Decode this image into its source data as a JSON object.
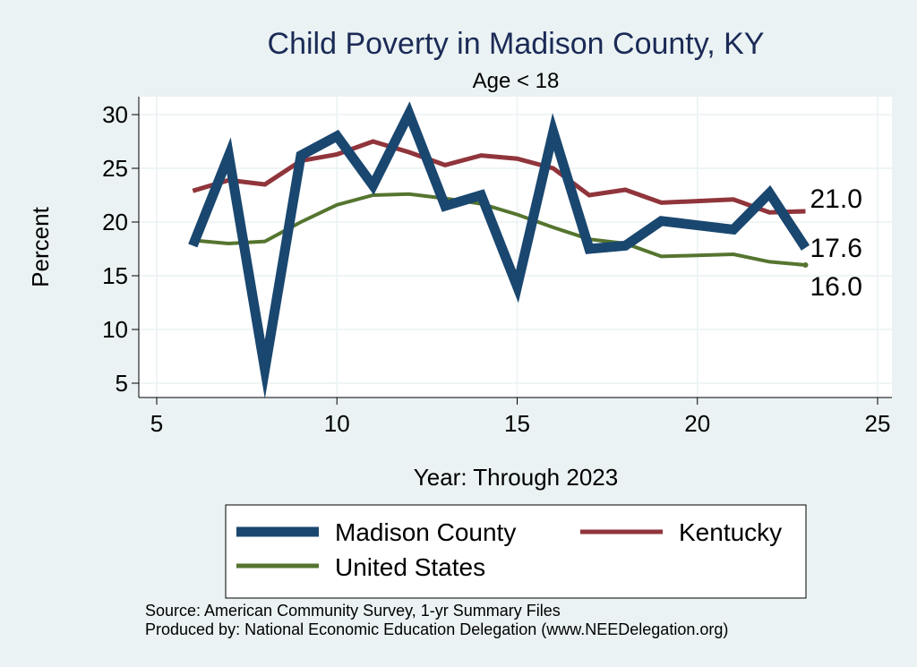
{
  "chart_data": {
    "type": "line",
    "title": "Child Poverty in Madison County, KY",
    "subtitle": "Age < 18",
    "xlabel": "Year: Through 2023",
    "ylabel": "Percent",
    "xlim": [
      5,
      25
    ],
    "ylim": [
      3.5,
      31.5
    ],
    "xticks": [
      5,
      10,
      15,
      20,
      25
    ],
    "yticks": [
      5,
      10,
      15,
      20,
      25,
      30
    ],
    "grid": true,
    "legend_position": "bottom",
    "series": [
      {
        "name": "Madison County",
        "color": "#1a476f",
        "x": [
          6,
          7,
          8,
          9,
          10,
          11,
          12,
          13,
          14,
          15,
          16,
          17,
          18,
          19,
          21,
          22,
          23
        ],
        "values": [
          17.8,
          26.2,
          6.3,
          26.2,
          28.0,
          23.4,
          30.1,
          21.5,
          22.5,
          14.0,
          28.4,
          17.5,
          17.8,
          20.1,
          19.3,
          22.7,
          17.6
        ],
        "end_label": "17.6"
      },
      {
        "name": "Kentucky",
        "color": "#90353b",
        "x": [
          6,
          7,
          8,
          9,
          10,
          11,
          12,
          13,
          14,
          15,
          16,
          17,
          18,
          19,
          21,
          22,
          23
        ],
        "values": [
          22.9,
          23.9,
          23.5,
          25.7,
          26.3,
          27.5,
          26.5,
          25.3,
          26.2,
          25.9,
          25.0,
          22.5,
          23.0,
          21.8,
          22.1,
          20.9,
          21.0
        ],
        "end_label": "21.0"
      },
      {
        "name": "United States",
        "color": "#55752f",
        "x": [
          6,
          7,
          8,
          9,
          10,
          11,
          12,
          13,
          14,
          15,
          16,
          17,
          18,
          19,
          21,
          22,
          23
        ],
        "values": [
          18.3,
          18.0,
          18.2,
          20.0,
          21.6,
          22.5,
          22.6,
          22.2,
          21.7,
          20.7,
          19.5,
          18.4,
          18.0,
          16.8,
          17.0,
          16.3,
          16.0
        ],
        "end_label": "16.0"
      }
    ]
  },
  "footer": {
    "source": "Source: American Community Survey, 1-yr Summary Files",
    "produced_by": "Produced by: National Economic Education Delegation (www.NEEDelegation.org)"
  }
}
